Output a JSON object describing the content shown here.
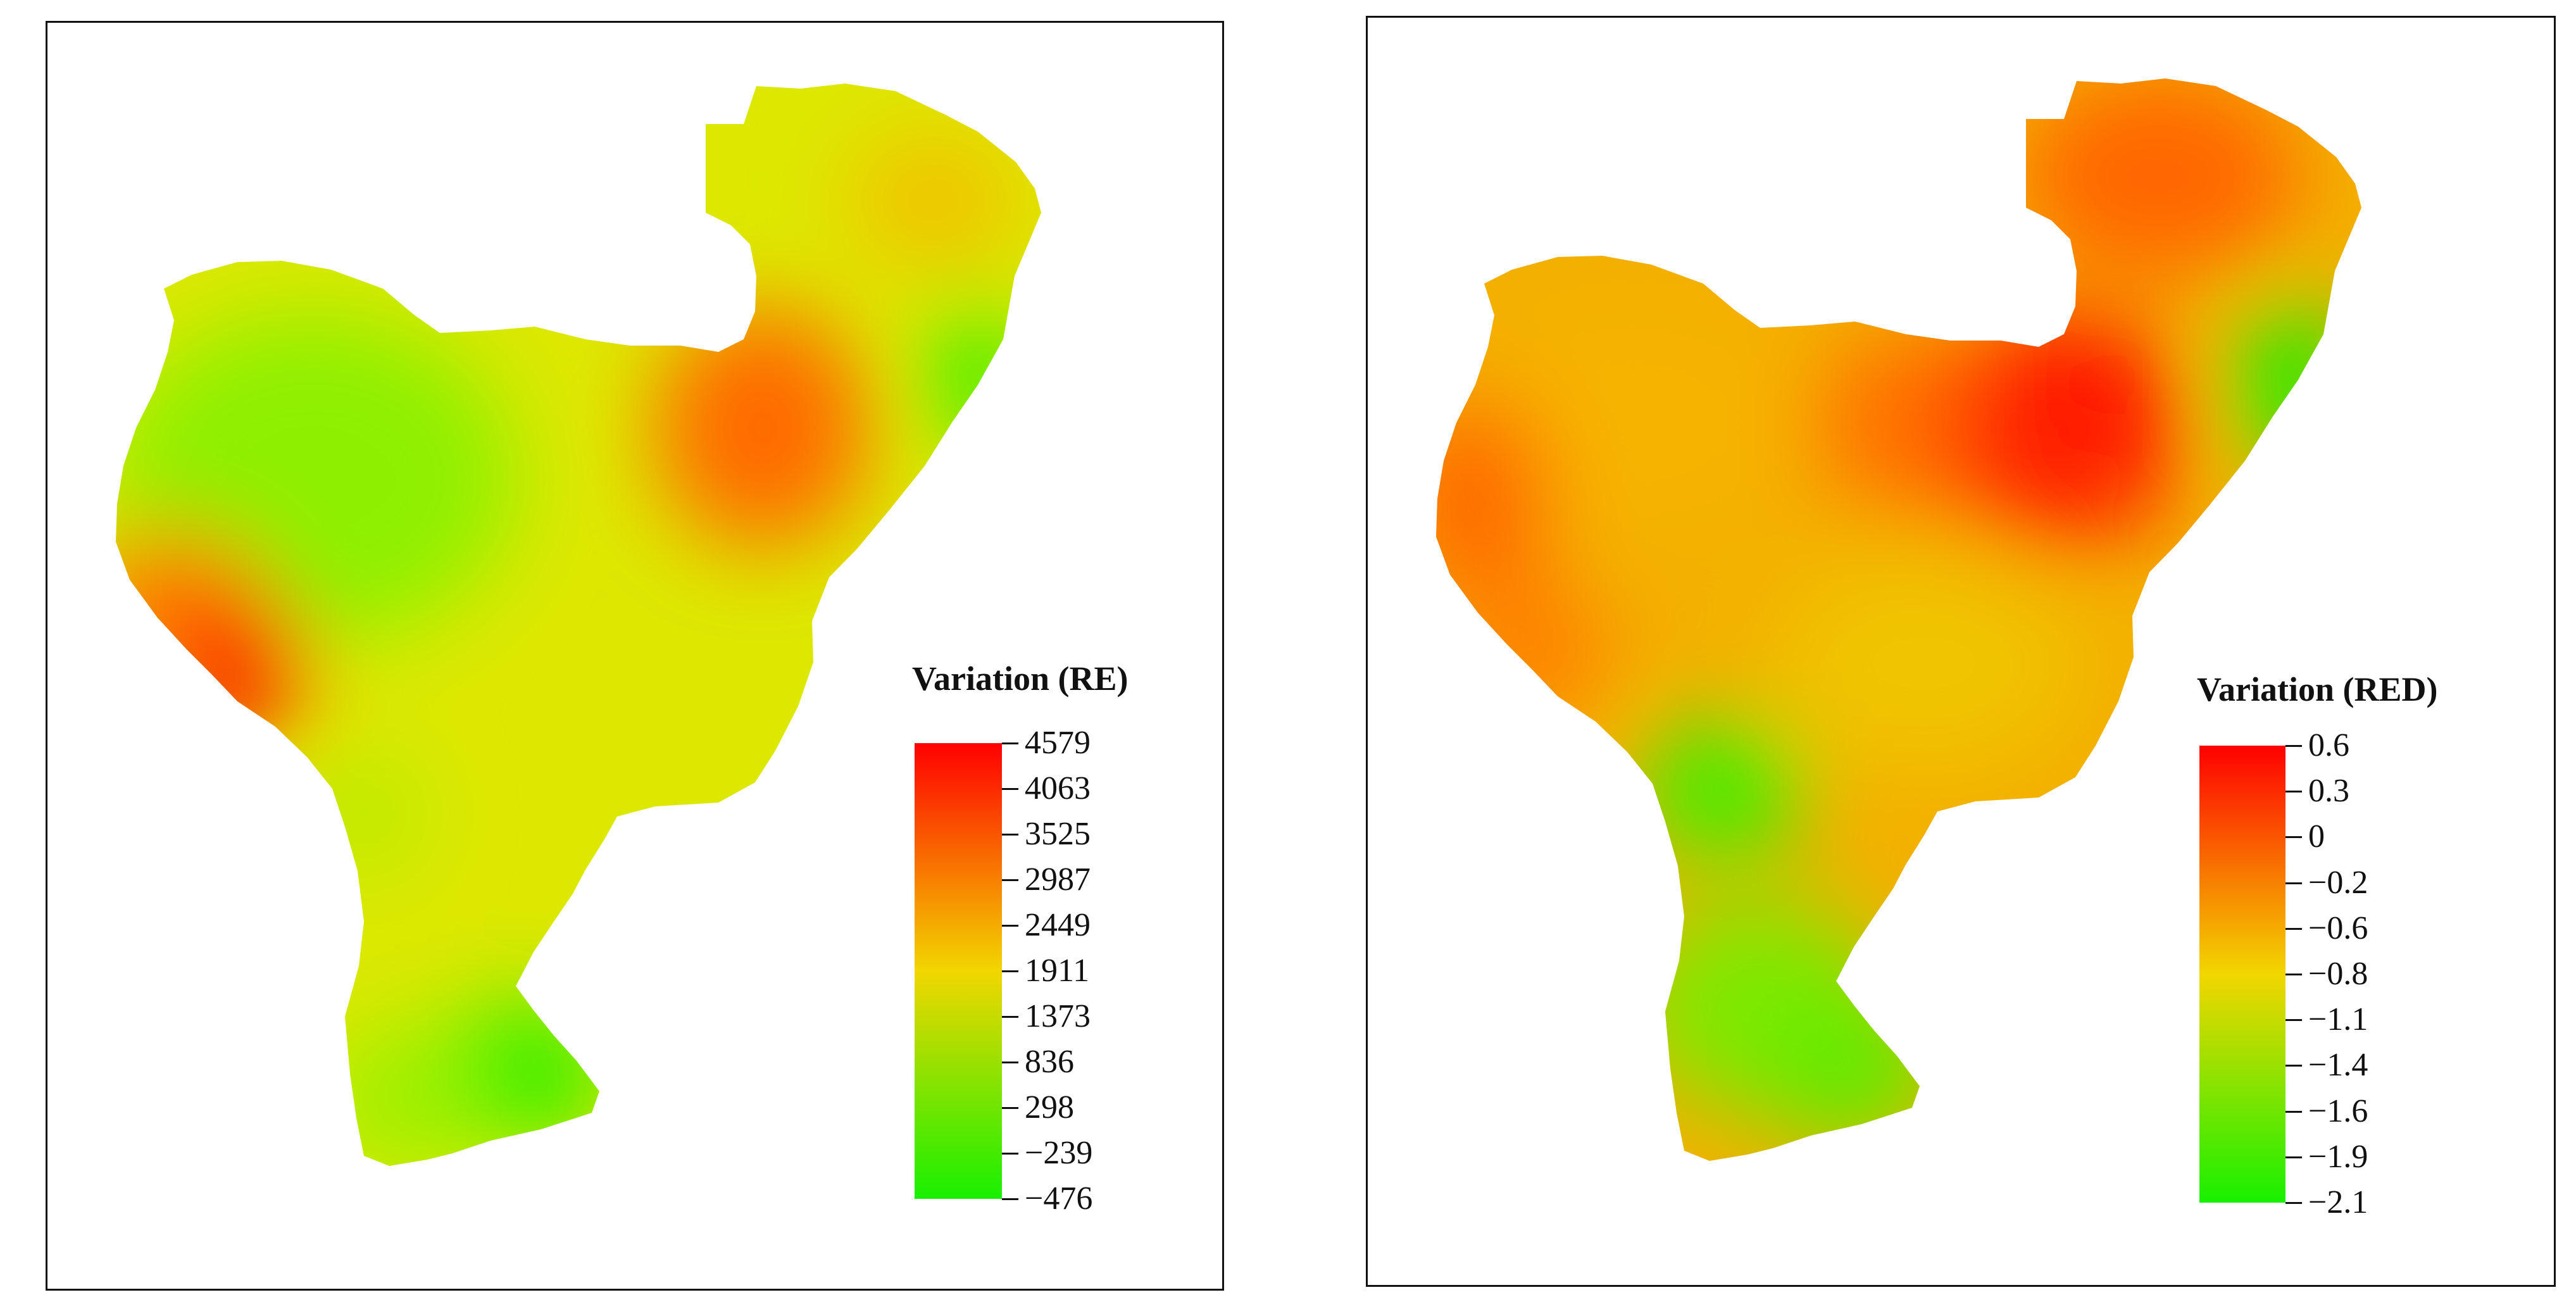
{
  "maps": [
    {
      "id": "re",
      "legend": {
        "title": "Variation (RE)",
        "labels": [
          "4579",
          "4063",
          "3525",
          "2987",
          "2449",
          "1911",
          "1373",
          "836",
          "298",
          "−239",
          "−476"
        ],
        "colors": {
          "high": "#ff0000",
          "mid": "#f2d600",
          "low": "#18f000"
        }
      }
    },
    {
      "id": "red",
      "legend": {
        "title": "Variation (RED)",
        "labels": [
          "0.6",
          "0.3",
          "0",
          "−0.2",
          "−0.6",
          "−0.8",
          "−1.1",
          "−1.4",
          "−1.6",
          "−1.9",
          "−2.1"
        ],
        "colors": {
          "high": "#ff0000",
          "mid": "#f2d600",
          "low": "#18f000"
        }
      }
    }
  ]
}
